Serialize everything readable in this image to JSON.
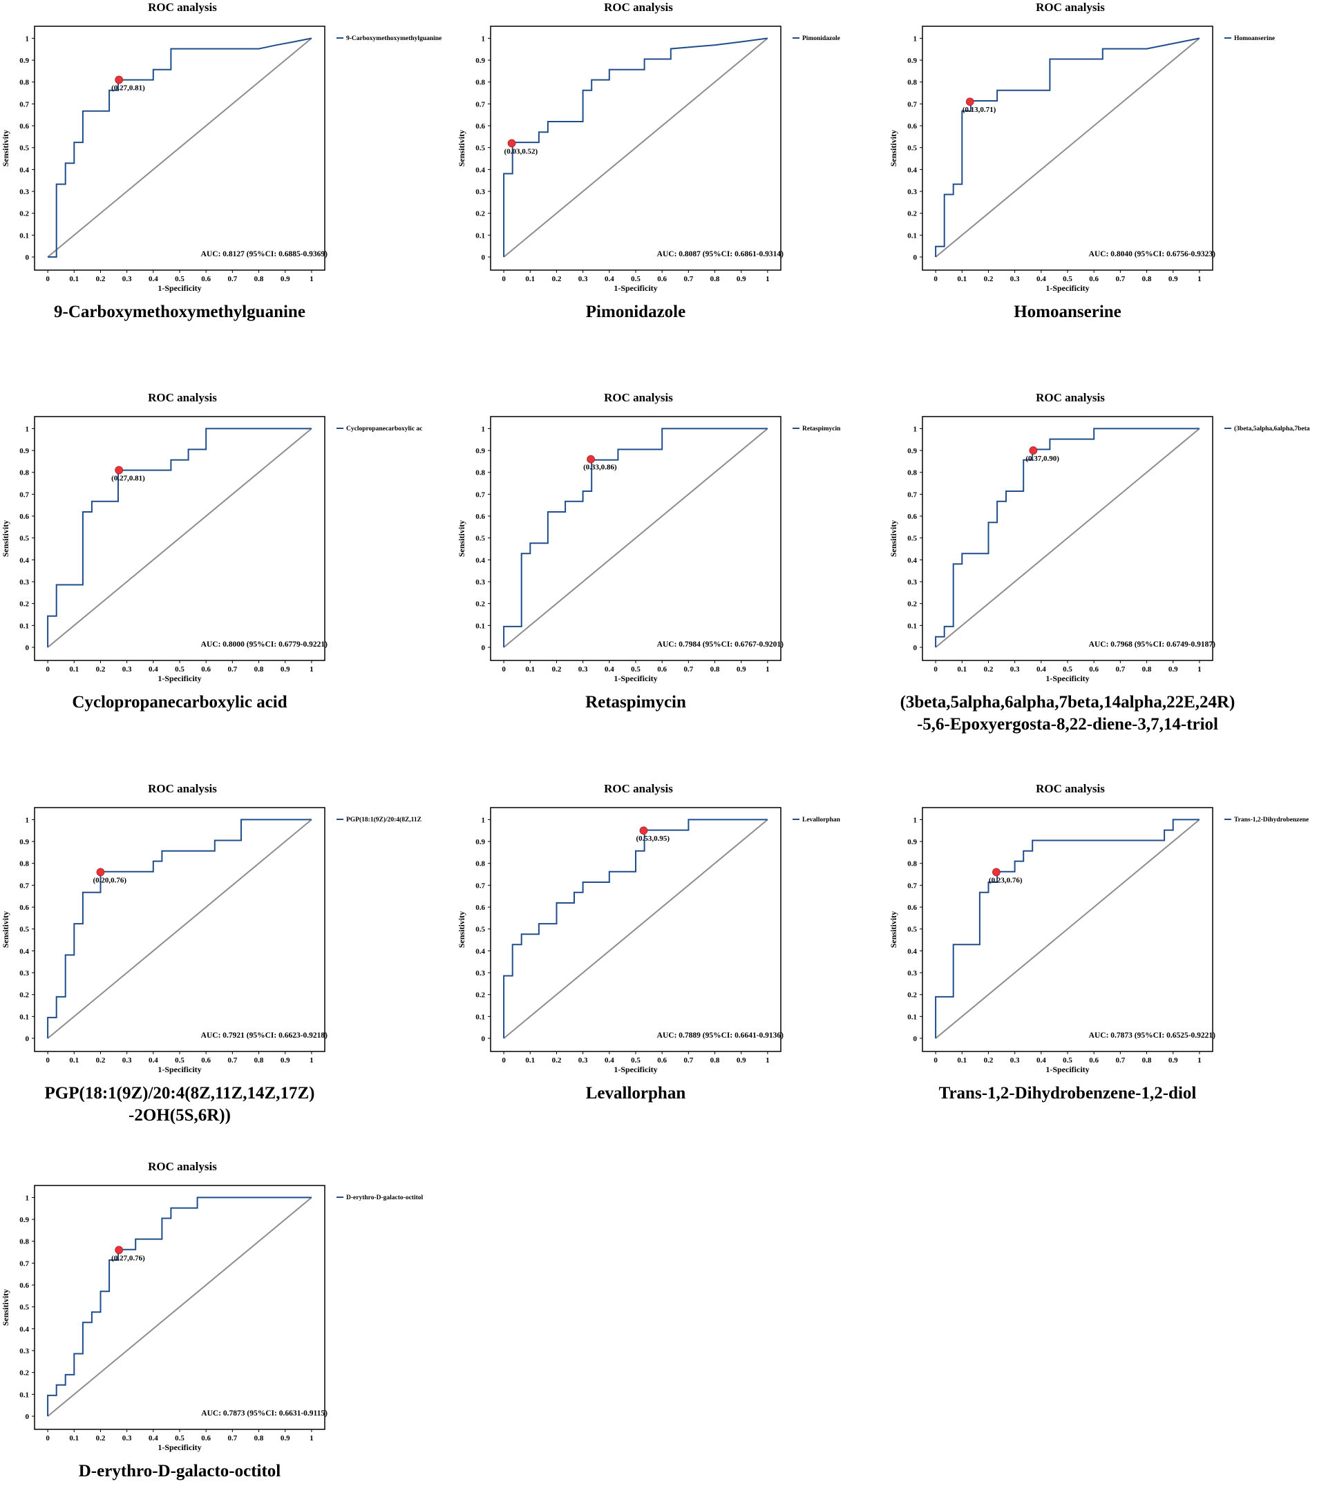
{
  "colors": {
    "curve": "#1f4d8c",
    "reference": "#8c8c8c",
    "cutoff": "#e5343a",
    "frame": "#000000"
  },
  "chart_data": [
    {
      "type": "line",
      "title": "ROC analysis",
      "xlabel": "1-Specificity",
      "ylabel": "Sensitivity",
      "xlim": [
        -0.05,
        1.05
      ],
      "ylim": [
        -0.06,
        1.055
      ],
      "xticks": [
        "0",
        "0.1",
        "0.2",
        "0.3",
        "0.4",
        "0.5",
        "0.6",
        "0.7",
        "0.8",
        "0.9",
        "1"
      ],
      "yticks": [
        "0",
        "0.1",
        "0.2",
        "0.3",
        "0.4",
        "0.5",
        "0.6",
        "0.7",
        "0.8",
        "0.9",
        "1"
      ],
      "legend": "9-Carboxymethoxymethylguanine",
      "auc_text": "AUC: 0.8127 (95%CI: 0.6885-0.9369)",
      "cutoff": {
        "x": 0.27,
        "y": 0.81,
        "label": "(0.27,0.81)"
      },
      "reference_line": {
        "x": [
          0,
          1
        ],
        "y": [
          0,
          1
        ]
      },
      "roc_curve": {
        "fpr": [
          0,
          0.033,
          0.033,
          0.067,
          0.067,
          0.1,
          0.1,
          0.133,
          0.133,
          0.233,
          0.233,
          0.267,
          0.267,
          0.4,
          0.4,
          0.467,
          0.467,
          0.8,
          0.867,
          0.933,
          1
        ],
        "tpr": [
          0,
          0,
          0.333,
          0.333,
          0.429,
          0.429,
          0.524,
          0.524,
          0.667,
          0.667,
          0.762,
          0.762,
          0.81,
          0.81,
          0.857,
          0.857,
          0.952,
          0.952,
          0.969,
          0.984,
          1
        ]
      },
      "caption": [
        "9-Carboxymethoxymethylguanine"
      ]
    },
    {
      "type": "line",
      "title": "ROC analysis",
      "xlabel": "1-Specificity",
      "ylabel": "Sensitivity",
      "xlim": [
        -0.05,
        1.05
      ],
      "ylim": [
        -0.06,
        1.055
      ],
      "xticks": [
        "0",
        "0.1",
        "0.2",
        "0.3",
        "0.4",
        "0.5",
        "0.6",
        "0.7",
        "0.8",
        "0.9",
        "1"
      ],
      "yticks": [
        "0",
        "0.1",
        "0.2",
        "0.3",
        "0.4",
        "0.5",
        "0.6",
        "0.7",
        "0.8",
        "0.9",
        "1"
      ],
      "legend": "Pimonidazole",
      "auc_text": "AUC: 0.8087 (95%CI: 0.6861-0.9314)",
      "cutoff": {
        "x": 0.03,
        "y": 0.52,
        "label": "(0.03,0.52)"
      },
      "reference_line": {
        "x": [
          0,
          1
        ],
        "y": [
          0,
          1
        ]
      },
      "roc_curve": {
        "fpr": [
          0,
          0,
          0.033,
          0.033,
          0.133,
          0.133,
          0.167,
          0.167,
          0.3,
          0.3,
          0.333,
          0.333,
          0.4,
          0.4,
          0.533,
          0.533,
          0.633,
          0.633,
          0.8,
          0.9,
          1
        ],
        "tpr": [
          0,
          0.381,
          0.381,
          0.524,
          0.524,
          0.571,
          0.571,
          0.619,
          0.619,
          0.762,
          0.762,
          0.81,
          0.81,
          0.857,
          0.857,
          0.905,
          0.905,
          0.952,
          0.969,
          0.984,
          1
        ]
      },
      "caption": [
        "Pimonidazole"
      ]
    },
    {
      "type": "line",
      "title": "ROC analysis",
      "xlabel": "1-Specificity",
      "ylabel": "Sensitivity",
      "xlim": [
        -0.05,
        1.05
      ],
      "ylim": [
        -0.06,
        1.055
      ],
      "xticks": [
        "0",
        "0.1",
        "0.2",
        "0.3",
        "0.4",
        "0.5",
        "0.6",
        "0.7",
        "0.8",
        "0.9",
        "1"
      ],
      "yticks": [
        "0",
        "0.1",
        "0.2",
        "0.3",
        "0.4",
        "0.5",
        "0.6",
        "0.7",
        "0.8",
        "0.9",
        "1"
      ],
      "legend": "Homoanserine",
      "auc_text": "AUC: 0.8040 (95%CI: 0.6756-0.9323)",
      "cutoff": {
        "x": 0.13,
        "y": 0.71,
        "label": "(0.13,0.71)"
      },
      "reference_line": {
        "x": [
          0,
          1
        ],
        "y": [
          0,
          1
        ]
      },
      "roc_curve": {
        "fpr": [
          0,
          0,
          0.033,
          0.033,
          0.067,
          0.067,
          0.1,
          0.1,
          0.133,
          0.133,
          0.233,
          0.233,
          0.433,
          0.433,
          0.633,
          0.633,
          0.8,
          0.9,
          1
        ],
        "tpr": [
          0,
          0.048,
          0.048,
          0.286,
          0.286,
          0.333,
          0.333,
          0.667,
          0.667,
          0.714,
          0.714,
          0.762,
          0.762,
          0.905,
          0.905,
          0.952,
          0.952,
          0.976,
          1
        ]
      },
      "caption": [
        "Homoanserine"
      ]
    },
    {
      "type": "line",
      "title": "ROC analysis",
      "xlabel": "1-Specificity",
      "ylabel": "Sensitivity",
      "xlim": [
        -0.05,
        1.05
      ],
      "ylim": [
        -0.06,
        1.055
      ],
      "xticks": [
        "0",
        "0.1",
        "0.2",
        "0.3",
        "0.4",
        "0.5",
        "0.6",
        "0.7",
        "0.8",
        "0.9",
        "1"
      ],
      "yticks": [
        "0",
        "0.1",
        "0.2",
        "0.3",
        "0.4",
        "0.5",
        "0.6",
        "0.7",
        "0.8",
        "0.9",
        "1"
      ],
      "legend": "Cyclopropanecarboxylic ac",
      "auc_text": "AUC: 0.8000 (95%CI: 0.6779-0.9221)",
      "cutoff": {
        "x": 0.27,
        "y": 0.81,
        "label": "(0.27,0.81)"
      },
      "reference_line": {
        "x": [
          0,
          1
        ],
        "y": [
          0,
          1
        ]
      },
      "roc_curve": {
        "fpr": [
          0,
          0,
          0.033,
          0.033,
          0.133,
          0.133,
          0.167,
          0.167,
          0.267,
          0.267,
          0.467,
          0.467,
          0.533,
          0.533,
          0.6,
          0.6,
          1
        ],
        "tpr": [
          0,
          0.143,
          0.143,
          0.286,
          0.286,
          0.619,
          0.619,
          0.667,
          0.667,
          0.81,
          0.81,
          0.857,
          0.857,
          0.905,
          0.905,
          1,
          1
        ]
      },
      "caption": [
        "Cyclopropanecarboxylic acid"
      ]
    },
    {
      "type": "line",
      "title": "ROC analysis",
      "xlabel": "1-Specificity",
      "ylabel": "Sensitivity",
      "xlim": [
        -0.05,
        1.05
      ],
      "ylim": [
        -0.06,
        1.055
      ],
      "xticks": [
        "0",
        "0.1",
        "0.2",
        "0.3",
        "0.4",
        "0.5",
        "0.6",
        "0.7",
        "0.8",
        "0.9",
        "1"
      ],
      "yticks": [
        "0",
        "0.1",
        "0.2",
        "0.3",
        "0.4",
        "0.5",
        "0.6",
        "0.7",
        "0.8",
        "0.9",
        "1"
      ],
      "legend": "Retaspimycin",
      "auc_text": "AUC: 0.7984 (95%CI: 0.6767-0.9201)",
      "cutoff": {
        "x": 0.33,
        "y": 0.86,
        "label": "(0.33,0.86)"
      },
      "reference_line": {
        "x": [
          0,
          1
        ],
        "y": [
          0,
          1
        ]
      },
      "roc_curve": {
        "fpr": [
          0,
          0,
          0.067,
          0.067,
          0.1,
          0.1,
          0.167,
          0.167,
          0.233,
          0.233,
          0.3,
          0.3,
          0.333,
          0.333,
          0.433,
          0.433,
          0.6,
          0.6,
          1
        ],
        "tpr": [
          0,
          0.095,
          0.095,
          0.429,
          0.429,
          0.476,
          0.476,
          0.619,
          0.619,
          0.667,
          0.667,
          0.714,
          0.714,
          0.857,
          0.857,
          0.905,
          0.905,
          1,
          1
        ]
      },
      "caption": [
        "Retaspimycin"
      ]
    },
    {
      "type": "line",
      "title": "ROC analysis",
      "xlabel": "1-Specificity",
      "ylabel": "Sensitivity",
      "xlim": [
        -0.05,
        1.05
      ],
      "ylim": [
        -0.06,
        1.055
      ],
      "xticks": [
        "0",
        "0.1",
        "0.2",
        "0.3",
        "0.4",
        "0.5",
        "0.6",
        "0.7",
        "0.8",
        "0.9",
        "1"
      ],
      "yticks": [
        "0",
        "0.1",
        "0.2",
        "0.3",
        "0.4",
        "0.5",
        "0.6",
        "0.7",
        "0.8",
        "0.9",
        "1"
      ],
      "legend": "(3beta,5alpha,6alpha,7beta",
      "auc_text": "AUC: 0.7968 (95%CI: 0.6749-0.9187)",
      "cutoff": {
        "x": 0.37,
        "y": 0.9,
        "label": "(0.37,0.90)"
      },
      "reference_line": {
        "x": [
          0,
          1
        ],
        "y": [
          0,
          1
        ]
      },
      "roc_curve": {
        "fpr": [
          0,
          0,
          0.033,
          0.033,
          0.067,
          0.067,
          0.1,
          0.1,
          0.2,
          0.2,
          0.233,
          0.233,
          0.267,
          0.267,
          0.333,
          0.333,
          0.367,
          0.367,
          0.433,
          0.433,
          0.6,
          0.6,
          1
        ],
        "tpr": [
          0,
          0.048,
          0.048,
          0.095,
          0.095,
          0.381,
          0.381,
          0.429,
          0.429,
          0.571,
          0.571,
          0.667,
          0.667,
          0.714,
          0.714,
          0.857,
          0.857,
          0.905,
          0.905,
          0.952,
          0.952,
          1,
          1
        ]
      },
      "caption": [
        "(3beta,5alpha,6alpha,7beta,14alpha,22E,24R)",
        "-5,6-Epoxyergosta-8,22-diene-3,7,14-triol"
      ]
    },
    {
      "type": "line",
      "title": "ROC analysis",
      "xlabel": "1-Specificity",
      "ylabel": "Sensitivity",
      "xlim": [
        -0.05,
        1.05
      ],
      "ylim": [
        -0.06,
        1.055
      ],
      "xticks": [
        "0",
        "0.1",
        "0.2",
        "0.3",
        "0.4",
        "0.5",
        "0.6",
        "0.7",
        "0.8",
        "0.9",
        "1"
      ],
      "yticks": [
        "0",
        "0.1",
        "0.2",
        "0.3",
        "0.4",
        "0.5",
        "0.6",
        "0.7",
        "0.8",
        "0.9",
        "1"
      ],
      "legend": "PGP(18:1(9Z)/20:4(8Z,11Z",
      "auc_text": "AUC: 0.7921 (95%CI: 0.6623-0.9218)",
      "cutoff": {
        "x": 0.2,
        "y": 0.76,
        "label": "(0.20,0.76)"
      },
      "reference_line": {
        "x": [
          0,
          1
        ],
        "y": [
          0,
          1
        ]
      },
      "roc_curve": {
        "fpr": [
          0,
          0,
          0.033,
          0.033,
          0.067,
          0.067,
          0.1,
          0.1,
          0.133,
          0.133,
          0.2,
          0.2,
          0.4,
          0.4,
          0.433,
          0.433,
          0.633,
          0.633,
          0.733,
          0.733,
          1
        ],
        "tpr": [
          0,
          0.095,
          0.095,
          0.19,
          0.19,
          0.381,
          0.381,
          0.524,
          0.524,
          0.667,
          0.667,
          0.762,
          0.762,
          0.81,
          0.81,
          0.857,
          0.857,
          0.905,
          0.905,
          1,
          1
        ]
      },
      "caption": [
        "PGP(18:1(9Z)/20:4(8Z,11Z,14Z,17Z)",
        "-2OH(5S,6R))"
      ]
    },
    {
      "type": "line",
      "title": "ROC analysis",
      "xlabel": "1-Specificity",
      "ylabel": "Sensitivity",
      "xlim": [
        -0.05,
        1.05
      ],
      "ylim": [
        -0.06,
        1.055
      ],
      "xticks": [
        "0",
        "0.1",
        "0.2",
        "0.3",
        "0.4",
        "0.5",
        "0.6",
        "0.7",
        "0.8",
        "0.9",
        "1"
      ],
      "yticks": [
        "0",
        "0.1",
        "0.2",
        "0.3",
        "0.4",
        "0.5",
        "0.6",
        "0.7",
        "0.8",
        "0.9",
        "1"
      ],
      "legend": "Levallorphan",
      "auc_text": "AUC: 0.7889 (95%CI: 0.6641-0.9136)",
      "cutoff": {
        "x": 0.53,
        "y": 0.95,
        "label": "(0.53,0.95)"
      },
      "reference_line": {
        "x": [
          0,
          1
        ],
        "y": [
          0,
          1
        ]
      },
      "roc_curve": {
        "fpr": [
          0,
          0,
          0.033,
          0.033,
          0.067,
          0.067,
          0.133,
          0.133,
          0.2,
          0.2,
          0.267,
          0.267,
          0.3,
          0.3,
          0.4,
          0.4,
          0.5,
          0.5,
          0.533,
          0.533,
          0.7,
          0.7,
          1
        ],
        "tpr": [
          0,
          0.286,
          0.286,
          0.429,
          0.429,
          0.476,
          0.476,
          0.524,
          0.524,
          0.619,
          0.619,
          0.667,
          0.667,
          0.714,
          0.714,
          0.762,
          0.762,
          0.857,
          0.857,
          0.952,
          0.952,
          1,
          1
        ]
      },
      "caption": [
        "Levallorphan"
      ]
    },
    {
      "type": "line",
      "title": "ROC analysis",
      "xlabel": "1-Specificity",
      "ylabel": "Sensitivity",
      "xlim": [
        -0.05,
        1.05
      ],
      "ylim": [
        -0.06,
        1.055
      ],
      "xticks": [
        "0",
        "0.1",
        "0.2",
        "0.3",
        "0.4",
        "0.5",
        "0.6",
        "0.7",
        "0.8",
        "0.9",
        "1"
      ],
      "yticks": [
        "0",
        "0.1",
        "0.2",
        "0.3",
        "0.4",
        "0.5",
        "0.6",
        "0.7",
        "0.8",
        "0.9",
        "1"
      ],
      "legend": "Trans-1,2-Dihydrobenzene",
      "auc_text": "AUC: 0.7873 (95%CI: 0.6525-0.9221)",
      "cutoff": {
        "x": 0.23,
        "y": 0.76,
        "label": "(0.23,0.76)"
      },
      "reference_line": {
        "x": [
          0,
          1
        ],
        "y": [
          0,
          1
        ]
      },
      "roc_curve": {
        "fpr": [
          0,
          0,
          0.067,
          0.067,
          0.167,
          0.167,
          0.2,
          0.2,
          0.233,
          0.233,
          0.3,
          0.3,
          0.333,
          0.333,
          0.367,
          0.367,
          0.867,
          0.867,
          0.9,
          0.9,
          1
        ],
        "tpr": [
          0,
          0.19,
          0.19,
          0.429,
          0.429,
          0.667,
          0.667,
          0.714,
          0.714,
          0.762,
          0.762,
          0.81,
          0.81,
          0.857,
          0.857,
          0.905,
          0.905,
          0.952,
          0.952,
          1,
          1
        ]
      },
      "caption": [
        "Trans-1,2-Dihydrobenzene-1,2-diol"
      ]
    },
    {
      "type": "line",
      "title": "ROC analysis",
      "xlabel": "1-Specificity",
      "ylabel": "Sensitivity",
      "xlim": [
        -0.05,
        1.05
      ],
      "ylim": [
        -0.06,
        1.055
      ],
      "xticks": [
        "0",
        "0.1",
        "0.2",
        "0.3",
        "0.4",
        "0.5",
        "0.6",
        "0.7",
        "0.8",
        "0.9",
        "1"
      ],
      "yticks": [
        "0",
        "0.1",
        "0.2",
        "0.3",
        "0.4",
        "0.5",
        "0.6",
        "0.7",
        "0.8",
        "0.9",
        "1"
      ],
      "legend": "D-erythro-D-galacto-octitol",
      "auc_text": "AUC: 0.7873 (95%CI: 0.6631-0.9115)",
      "cutoff": {
        "x": 0.27,
        "y": 0.76,
        "label": "(0.27,0.76)"
      },
      "reference_line": {
        "x": [
          0,
          1
        ],
        "y": [
          0,
          1
        ]
      },
      "roc_curve": {
        "fpr": [
          0,
          0,
          0.033,
          0.033,
          0.067,
          0.067,
          0.1,
          0.1,
          0.133,
          0.133,
          0.167,
          0.167,
          0.2,
          0.2,
          0.233,
          0.233,
          0.267,
          0.267,
          0.333,
          0.333,
          0.433,
          0.433,
          0.467,
          0.467,
          0.567,
          0.567,
          1
        ],
        "tpr": [
          0,
          0.095,
          0.095,
          0.143,
          0.143,
          0.19,
          0.19,
          0.286,
          0.286,
          0.429,
          0.429,
          0.476,
          0.476,
          0.571,
          0.571,
          0.714,
          0.714,
          0.762,
          0.762,
          0.81,
          0.81,
          0.905,
          0.905,
          0.952,
          0.952,
          1,
          1
        ]
      },
      "caption": [
        "D-erythro-D-galacto-octitol"
      ]
    }
  ]
}
